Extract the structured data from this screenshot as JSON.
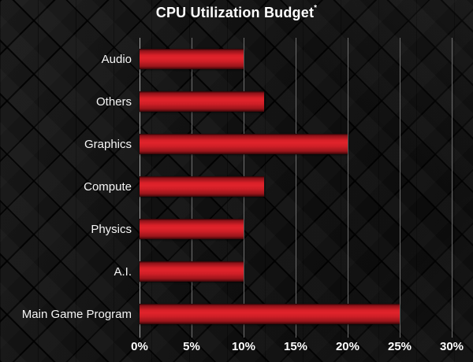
{
  "title": {
    "text": "CPU Utilization Budget",
    "superscript": "*"
  },
  "colors": {
    "bar_red": "#d92028",
    "background": "#0e0e0e",
    "gridline": "#6f6f6f",
    "axis_line": "#a8a8a8",
    "text": "#ffffff"
  },
  "chart_data": {
    "type": "bar",
    "orientation": "horizontal",
    "title": "CPU Utilization Budget*",
    "categories": [
      "Audio",
      "Others",
      "Graphics",
      "Compute",
      "Physics",
      "A.I.",
      "Main Game Program"
    ],
    "values": [
      10,
      12,
      20,
      12,
      10,
      10,
      25
    ],
    "unit": "%",
    "xlabel": "",
    "ylabel": "",
    "xlim": [
      0,
      30
    ],
    "xticks": [
      "0%",
      "5%",
      "10%",
      "15%",
      "20%",
      "25%",
      "30%"
    ],
    "xtick_values": [
      0,
      5,
      10,
      15,
      20,
      25,
      30
    ],
    "grid": true,
    "legend": false
  }
}
